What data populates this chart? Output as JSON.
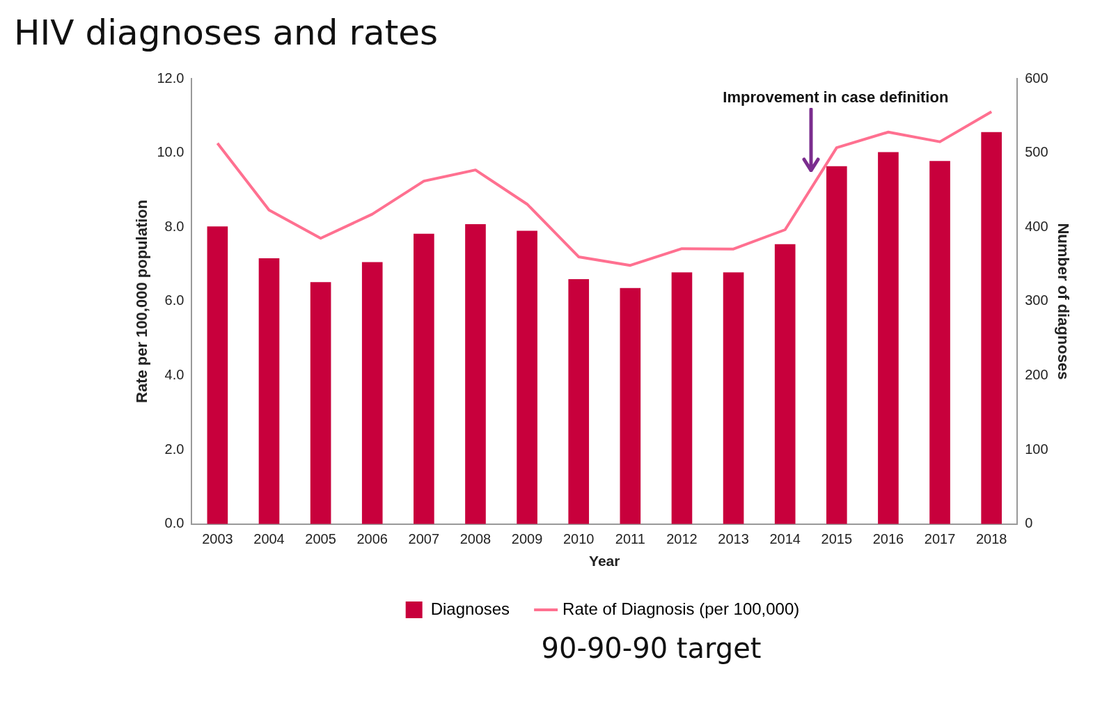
{
  "chart_data": {
    "type": "bar",
    "title": "HIV diagnoses and rates",
    "xlabel": "Year",
    "ylabel": "Rate per 100,000 population",
    "y2label": "Number of diagnoses",
    "categories": [
      "2003",
      "2004",
      "2005",
      "2006",
      "2007",
      "2008",
      "2009",
      "2010",
      "2011",
      "2012",
      "2013",
      "2014",
      "2015",
      "2016",
      "2017",
      "2018"
    ],
    "series": [
      {
        "name": "Diagnoses",
        "type": "bar",
        "axis": "y2",
        "color": "#c8003c",
        "values": [
          401,
          358,
          326,
          353,
          391,
          404,
          395,
          330,
          318,
          339,
          339,
          377,
          482,
          501,
          489,
          528
        ]
      },
      {
        "name": "Rate of Diagnosis (per 100,000)",
        "type": "line",
        "color": "#ff7090",
        "values": [
          10.26,
          8.46,
          7.7,
          8.35,
          9.24,
          9.54,
          8.62,
          7.2,
          6.97,
          7.42,
          7.41,
          7.93,
          10.14,
          10.56,
          10.3,
          11.11
        ]
      }
    ],
    "ylim": [
      0,
      12
    ],
    "yticks": [
      {
        "value": 0,
        "label": "0.0"
      },
      {
        "value": 2,
        "label": "2.0"
      },
      {
        "value": 4,
        "label": "4.0"
      },
      {
        "value": 6,
        "label": "6.0"
      },
      {
        "value": 8,
        "label": "8.0"
      },
      {
        "value": 10,
        "label": "10.0"
      },
      {
        "value": 12,
        "label": "12.0"
      }
    ],
    "y2lim": [
      0,
      600
    ],
    "y2ticks": [
      0,
      100,
      200,
      300,
      400,
      500,
      600
    ],
    "grid": false,
    "legend": "bottom",
    "marker": "none",
    "line_style": "solid",
    "annotations": [
      "Improvement in case definition",
      "90-90-90 target"
    ]
  }
}
